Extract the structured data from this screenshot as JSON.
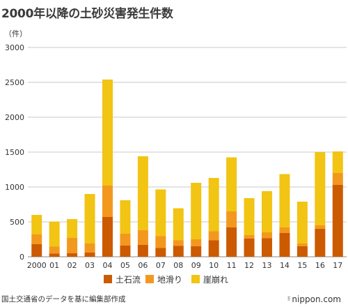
{
  "page": {
    "title": "2000年以降の土砂災害発生件数",
    "source": "国土交通省のデータを基に編集部作成",
    "brand": "nippon.com",
    "brand_dots": "⁝⁝"
  },
  "chart_data": {
    "type": "bar",
    "stacked": true,
    "ylabel": "（件）",
    "ylim": [
      0,
      3000
    ],
    "yticks": [
      0,
      500,
      1000,
      1500,
      2000,
      2500,
      3000
    ],
    "grid": true,
    "legend_position": "bottom",
    "categories": [
      "2000",
      "01",
      "02",
      "03",
      "04",
      "05",
      "06",
      "07",
      "08",
      "09",
      "10",
      "11",
      "12",
      "13",
      "14",
      "15",
      "16",
      "17"
    ],
    "series": [
      {
        "name": "土石流",
        "color": "#cc5a00",
        "values": [
          180,
          45,
          50,
          60,
          570,
          160,
          170,
          125,
          155,
          150,
          235,
          420,
          260,
          265,
          340,
          150,
          400,
          1030
        ]
      },
      {
        "name": "地滑り",
        "color": "#f3981e",
        "values": [
          140,
          100,
          220,
          130,
          450,
          170,
          210,
          170,
          80,
          100,
          130,
          230,
          50,
          85,
          80,
          40,
          50,
          170
        ]
      },
      {
        "name": "崖崩れ",
        "color": "#f2c413",
        "values": [
          280,
          360,
          270,
          710,
          1520,
          480,
          1060,
          670,
          460,
          810,
          765,
          775,
          530,
          590,
          765,
          600,
          1050,
          310
        ]
      }
    ]
  }
}
